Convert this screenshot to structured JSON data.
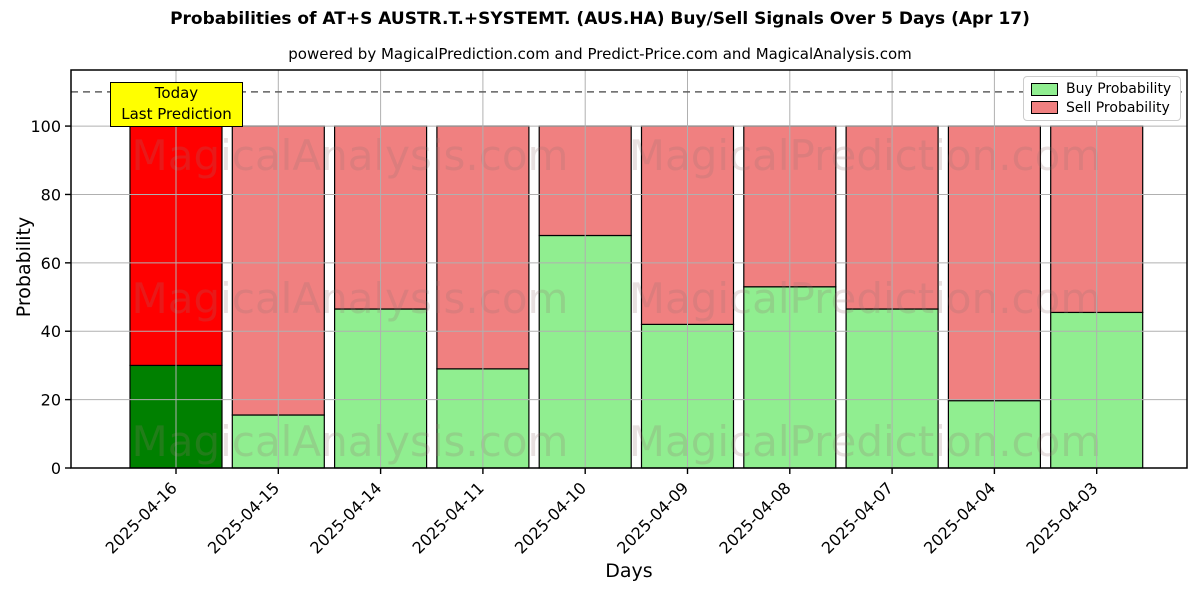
{
  "chart_data": {
    "type": "bar",
    "stacked": true,
    "title": "Probabilities of AT+S AUSTR.T.+SYSTEMT. (AUS.HA) Buy/Sell Signals Over 5 Days (Apr 17)",
    "subtitle": "powered by MagicalPrediction.com and Predict-Price.com and MagicalAnalysis.com",
    "xlabel": "Days",
    "ylabel": "Probability",
    "categories": [
      "2025-04-16",
      "2025-04-15",
      "2025-04-14",
      "2025-04-11",
      "2025-04-10",
      "2025-04-09",
      "2025-04-08",
      "2025-04-07",
      "2025-04-04",
      "2025-04-03"
    ],
    "series": [
      {
        "name": "Buy Probability",
        "color": "#90ee90",
        "highlight_color": "#008000",
        "values": [
          30,
          15.5,
          46.5,
          29,
          68,
          42,
          53,
          46.5,
          19.7,
          45.5
        ]
      },
      {
        "name": "Sell Probability",
        "color": "#f08080",
        "highlight_color": "#ff0000",
        "values": [
          70,
          84.5,
          53.5,
          71,
          32,
          58,
          47,
          53.5,
          80.3,
          54.5
        ]
      }
    ],
    "highlight_index": 0,
    "ylim": [
      0,
      116
    ],
    "yticks": [
      0,
      20,
      40,
      60,
      80,
      100
    ],
    "grid": true,
    "grid_color": "#b0b0b0",
    "legend_position": "upper right",
    "threshold_line": {
      "y": 110,
      "style": "dashed",
      "color": "#606060"
    },
    "annotation": {
      "line1": "Today",
      "line2": "Last Prediction",
      "bg": "#ffff00"
    },
    "watermarks": {
      "left_text": "MagicalAnalysis.com",
      "right_text": "MagicalPrediction.com",
      "color": "#967070",
      "opacity": 0.22
    },
    "bar_edge_color": "#000000"
  }
}
